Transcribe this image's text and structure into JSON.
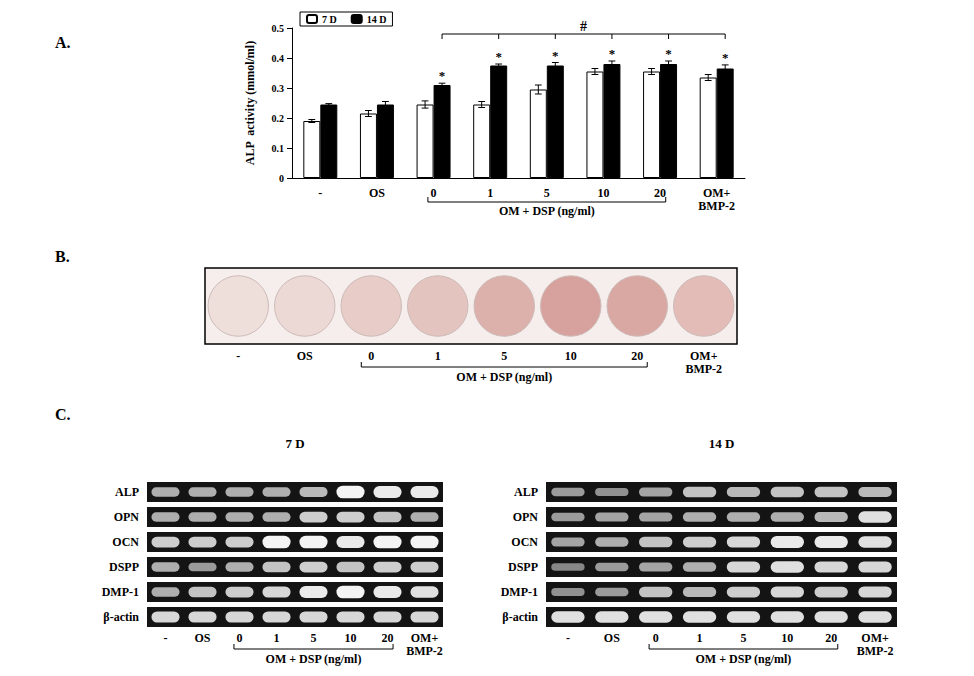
{
  "panel_labels": [
    "A.",
    "B.",
    "C."
  ],
  "chart_data": {
    "type": "bar",
    "y_label": "ALP  activity (mmol/ml)",
    "categories": [
      "-",
      "OS",
      "0",
      "1",
      "5",
      "10",
      "20",
      "OM+\nBMP-2"
    ],
    "group_label": "OM + DSP (ng/ml)",
    "group": [
      "0",
      "20"
    ],
    "series": [
      {
        "name": "7 D",
        "color": "#ffffff",
        "values": [
          0.19,
          0.215,
          0.245,
          0.245,
          0.295,
          0.355,
          0.355,
          0.335
        ],
        "errors": [
          0.005,
          0.01,
          0.012,
          0.01,
          0.015,
          0.01,
          0.01,
          0.01
        ]
      },
      {
        "name": "14 D",
        "color": "#000000",
        "values": [
          0.245,
          0.245,
          0.31,
          0.375,
          0.375,
          0.38,
          0.38,
          0.365
        ],
        "errors": [
          0.003,
          0.01,
          0.006,
          0.005,
          0.01,
          0.01,
          0.01,
          0.012
        ],
        "significance": [
          null,
          null,
          "*",
          "*",
          "*",
          "*",
          "*",
          "*"
        ]
      }
    ],
    "bracket": {
      "text": "#",
      "from": "0",
      "to": "OM+\nBMP-2"
    },
    "ylim": [
      0,
      0.5
    ],
    "yticks": [
      0,
      0.1,
      0.2,
      0.3,
      0.4,
      0.5
    ],
    "legend": "top-left",
    "grid": false
  },
  "stain": {
    "lanes": [
      "-",
      "OS",
      "0",
      "1",
      "5",
      "10",
      "20",
      "OM+\nBMP-2"
    ],
    "group_label": "OM + DSP (ng/ml)",
    "group": [
      "0",
      "20"
    ],
    "colors": [
      "#efdfdb",
      "#ecd9d5",
      "#e7ccc7",
      "#e4c4bf",
      "#dcb0ab",
      "#d7a29d",
      "#daa8a2",
      "#e3bcb7"
    ]
  },
  "gels": [
    {
      "title": "7 D",
      "lanes": [
        "-",
        "OS",
        "0",
        "1",
        "5",
        "10",
        "20",
        "OM+\nBMP-2"
      ],
      "group_label": "OM + DSP (ng/ml)",
      "group": [
        "0",
        "20"
      ],
      "rows": [
        {
          "gene": "ALP",
          "intensity": [
            0.6,
            0.6,
            0.6,
            0.6,
            0.65,
            0.95,
            0.9,
            0.9
          ]
        },
        {
          "gene": "OPN",
          "intensity": [
            0.6,
            0.6,
            0.6,
            0.6,
            0.75,
            0.75,
            0.7,
            0.6
          ]
        },
        {
          "gene": "OCN",
          "intensity": [
            0.75,
            0.75,
            0.75,
            0.95,
            0.95,
            0.9,
            0.95,
            0.95
          ]
        },
        {
          "gene": "DSPP",
          "intensity": [
            0.6,
            0.5,
            0.6,
            0.7,
            0.75,
            0.7,
            0.75,
            0.75
          ]
        },
        {
          "gene": "DMP-1",
          "intensity": [
            0.6,
            0.7,
            0.75,
            0.8,
            0.9,
            0.95,
            0.9,
            0.85
          ]
        },
        {
          "gene": "β-actin",
          "intensity": [
            0.8,
            0.8,
            0.8,
            0.8,
            0.8,
            0.8,
            0.8,
            0.8
          ]
        }
      ]
    },
    {
      "title": "14 D",
      "lanes": [
        "-",
        "OS",
        "0",
        "1",
        "5",
        "10",
        "20",
        "OM+\nBMP-2"
      ],
      "group_label": "OM + DSP (ng/ml)",
      "group": [
        "0",
        "20"
      ],
      "rows": [
        {
          "gene": "ALP",
          "intensity": [
            0.5,
            0.45,
            0.55,
            0.7,
            0.65,
            0.7,
            0.7,
            0.65
          ]
        },
        {
          "gene": "OPN",
          "intensity": [
            0.5,
            0.55,
            0.55,
            0.6,
            0.6,
            0.6,
            0.65,
            0.85
          ]
        },
        {
          "gene": "OCN",
          "intensity": [
            0.55,
            0.6,
            0.7,
            0.75,
            0.8,
            0.9,
            0.9,
            0.85
          ]
        },
        {
          "gene": "DSPP",
          "intensity": [
            0.4,
            0.5,
            0.55,
            0.6,
            0.8,
            0.85,
            0.8,
            0.8
          ]
        },
        {
          "gene": "DMP-1",
          "intensity": [
            0.45,
            0.5,
            0.7,
            0.65,
            0.75,
            0.8,
            0.75,
            0.8
          ]
        },
        {
          "gene": "β-actin",
          "intensity": [
            0.85,
            0.85,
            0.85,
            0.85,
            0.85,
            0.85,
            0.85,
            0.85
          ]
        }
      ]
    }
  ]
}
